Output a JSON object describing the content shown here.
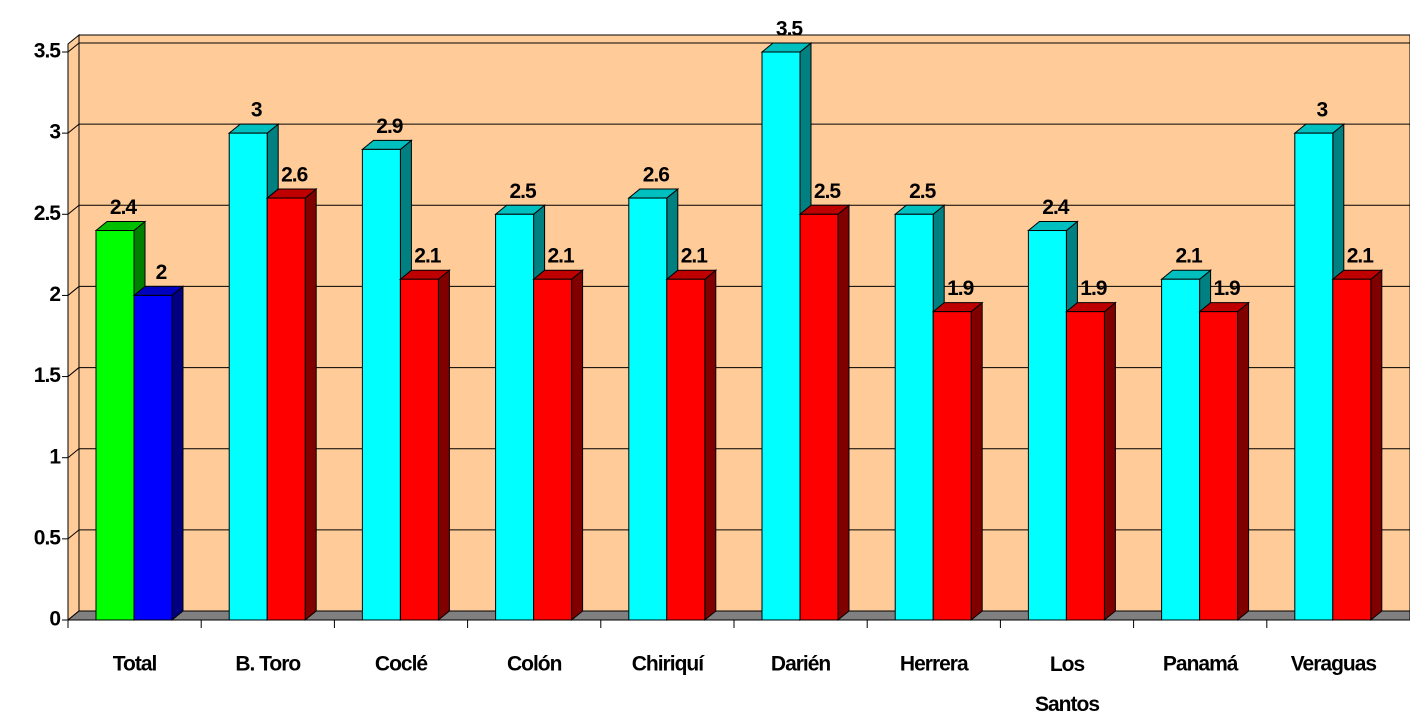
{
  "chart_data": {
    "type": "bar3d",
    "categories": [
      "Total",
      "B. Toro",
      "Coclé",
      "Colón",
      "Chiriquí",
      "Darién",
      "Herrera",
      "Los Santos",
      "Panamá",
      "Veraguas"
    ],
    "series": [
      {
        "colors": [
          "#00ff00",
          "#00ffff",
          "#00ffff",
          "#00ffff",
          "#00ffff",
          "#00ffff",
          "#00ffff",
          "#00ffff",
          "#00ffff",
          "#00ffff"
        ],
        "values": [
          2.4,
          3,
          2.9,
          2.5,
          2.6,
          3.5,
          2.5,
          2.4,
          2.1,
          3
        ]
      },
      {
        "colors": [
          "#0000ff",
          "#ff0000",
          "#ff0000",
          "#ff0000",
          "#ff0000",
          "#ff0000",
          "#ff0000",
          "#ff0000",
          "#ff0000",
          "#ff0000"
        ],
        "values": [
          2,
          2.6,
          2.1,
          2.1,
          2.1,
          2.5,
          1.9,
          1.9,
          1.9,
          2.1
        ]
      }
    ],
    "ylim": [
      0,
      3.5
    ],
    "yticks": [
      0,
      0.5,
      1,
      1.5,
      2,
      2.5,
      3,
      3.5
    ],
    "grid": true,
    "wall_color": "#ffcc99",
    "floor_color": "#808080"
  }
}
